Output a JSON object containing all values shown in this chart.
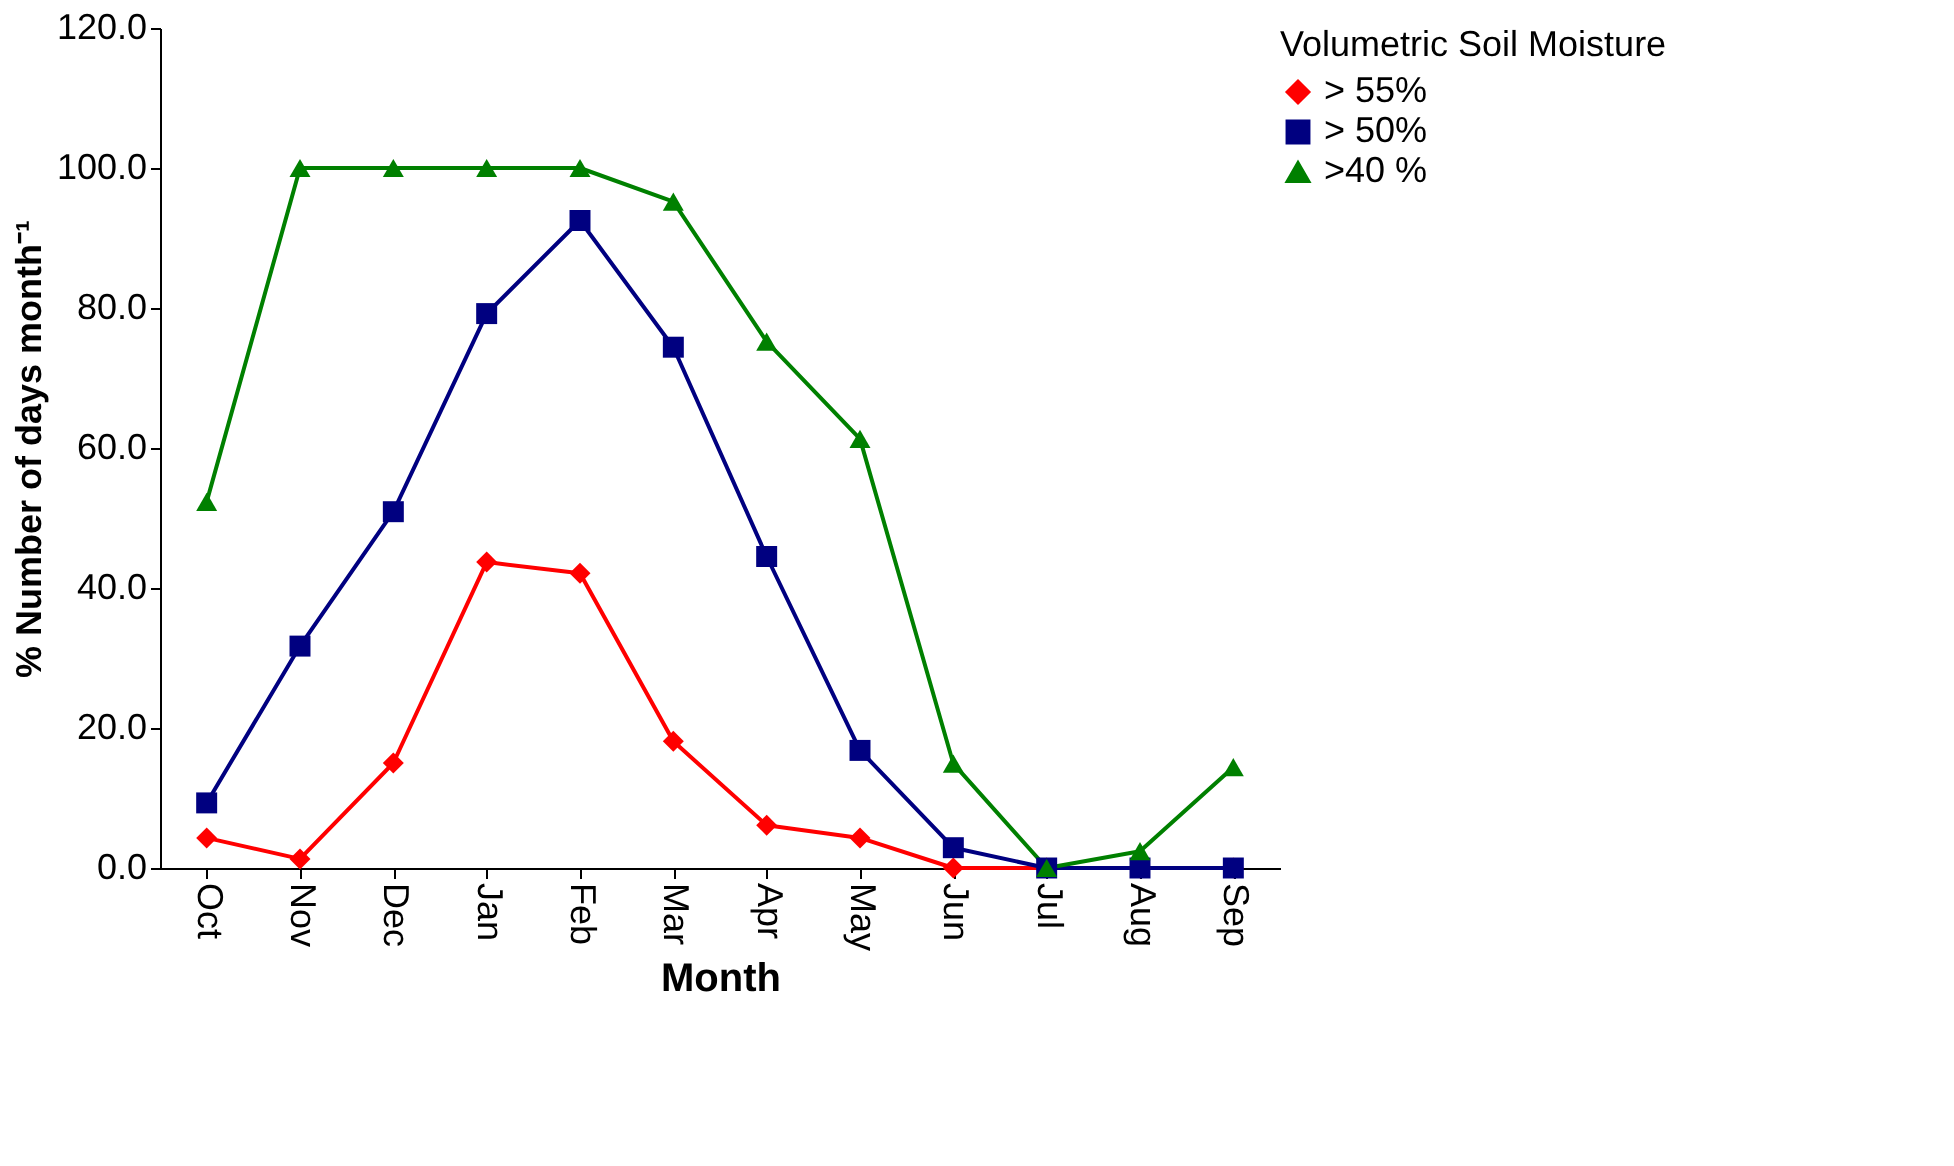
{
  "chart_data": {
    "type": "line",
    "xlabel": "Month",
    "ylabel": "% Number of days month⁻¹",
    "legend_title": "Volumetric Soil Moisture",
    "legend": "right",
    "grid": false,
    "categories": [
      "Oct",
      "Nov",
      "Dec",
      "Jan",
      "Feb",
      "Mar",
      "Apr",
      "May",
      "Jun",
      "Jul",
      "Aug",
      "Sep"
    ],
    "ylim": [
      0,
      120
    ],
    "yticks": [
      {
        "value": 0,
        "label": "0.0"
      },
      {
        "value": 20,
        "label": "20.0"
      },
      {
        "value": 40,
        "label": "40.0"
      },
      {
        "value": 60,
        "label": "60.0"
      },
      {
        "value": 80,
        "label": "80.0"
      },
      {
        "value": 100,
        "label": "100.0"
      },
      {
        "value": 120,
        "label": "120.0"
      }
    ],
    "series": [
      {
        "name": "> 55%",
        "color": "#ff0000",
        "marker": "diamond",
        "values": [
          4.3,
          1.3,
          15,
          43.7,
          42.1,
          18.1,
          6.1,
          4.3,
          0,
          0,
          0,
          0
        ]
      },
      {
        "name": "> 50%",
        "color": "#000080",
        "marker": "square",
        "values": [
          9.3,
          31.7,
          50.9,
          79.2,
          92.5,
          74.4,
          44.5,
          16.8,
          2.9,
          0,
          0,
          0
        ]
      },
      {
        "name": ">40 %",
        "color": "#008000",
        "marker": "triangle",
        "values": [
          52.3,
          100,
          100,
          100,
          100,
          95.2,
          75.2,
          61.3,
          14.9,
          0,
          2.4,
          14.4
        ]
      }
    ]
  }
}
